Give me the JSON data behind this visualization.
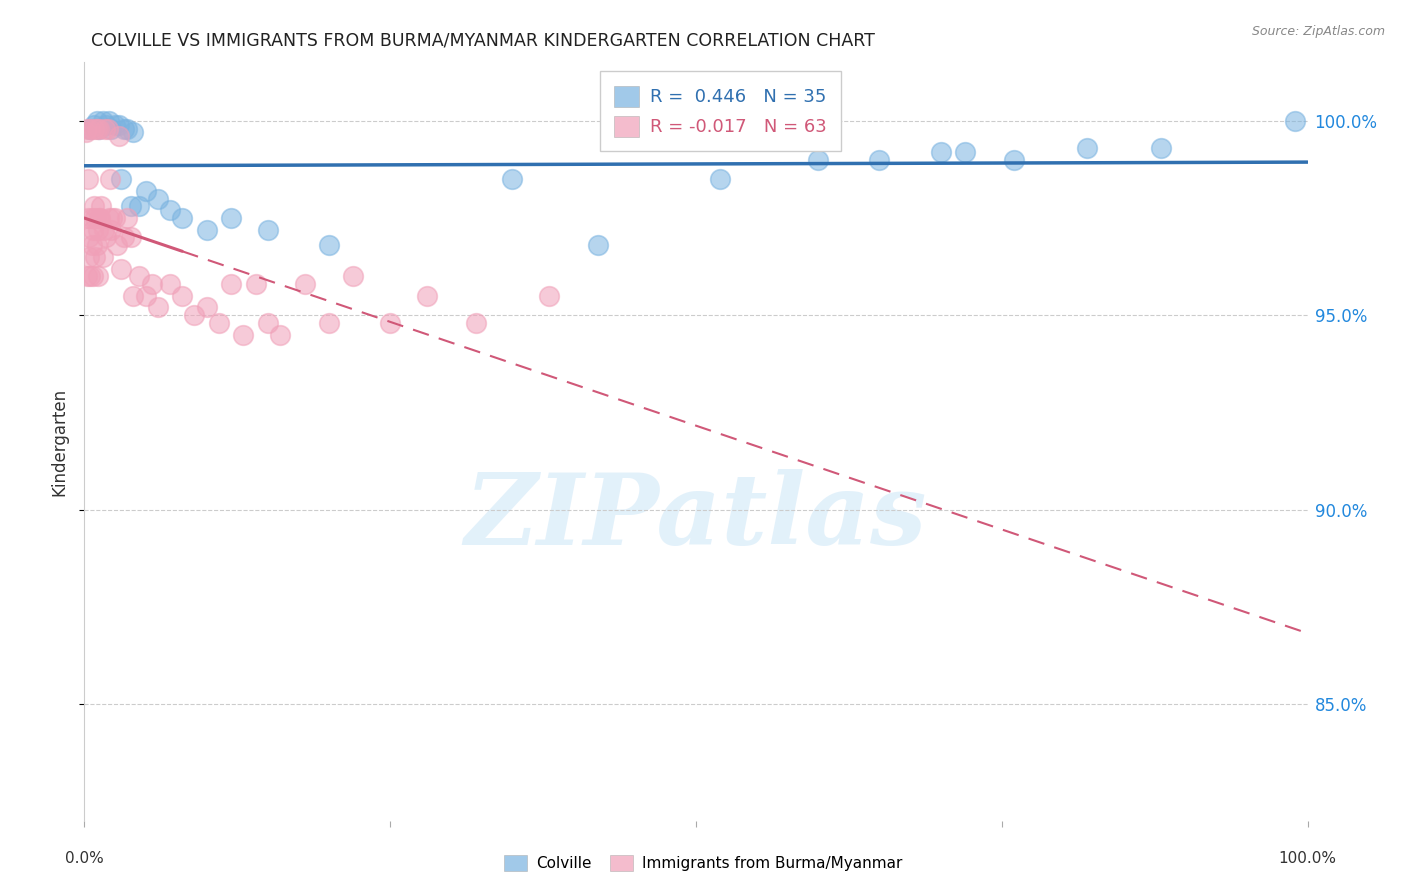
{
  "title": "COLVILLE VS IMMIGRANTS FROM BURMA/MYANMAR KINDERGARTEN CORRELATION CHART",
  "source": "Source: ZipAtlas.com",
  "ylabel": "Kindergarten",
  "xlim": [
    0.0,
    1.0
  ],
  "ylim": [
    0.82,
    1.015
  ],
  "yticks": [
    0.85,
    0.9,
    0.95,
    1.0
  ],
  "ytick_labels": [
    "85.0%",
    "90.0%",
    "95.0%",
    "100.0%"
  ],
  "legend1_R": "0.446",
  "legend1_N": "35",
  "legend2_R": "-0.017",
  "legend2_N": "63",
  "blue_color": "#7ab3e0",
  "pink_color": "#f0a0b8",
  "blue_line_color": "#3070b0",
  "pink_line_color": "#d05878",
  "blue_scatter_x": [
    0.005,
    0.008,
    0.01,
    0.012,
    0.015,
    0.018,
    0.02,
    0.022,
    0.025,
    0.028,
    0.03,
    0.032,
    0.035,
    0.038,
    0.04,
    0.045,
    0.05,
    0.06,
    0.07,
    0.08,
    0.1,
    0.12,
    0.15,
    0.2,
    0.35,
    0.42,
    0.52,
    0.6,
    0.65,
    0.7,
    0.72,
    0.76,
    0.82,
    0.88,
    0.99
  ],
  "blue_scatter_y": [
    0.998,
    0.999,
    1.0,
    0.998,
    1.0,
    0.999,
    1.0,
    0.998,
    0.999,
    0.999,
    0.985,
    0.998,
    0.998,
    0.978,
    0.997,
    0.978,
    0.982,
    0.98,
    0.977,
    0.975,
    0.972,
    0.975,
    0.972,
    0.968,
    0.985,
    0.968,
    0.985,
    0.99,
    0.99,
    0.992,
    0.992,
    0.99,
    0.993,
    0.993,
    1.0
  ],
  "pink_scatter_x": [
    0.001,
    0.002,
    0.002,
    0.003,
    0.003,
    0.004,
    0.004,
    0.005,
    0.005,
    0.006,
    0.006,
    0.007,
    0.007,
    0.008,
    0.008,
    0.009,
    0.009,
    0.01,
    0.01,
    0.011,
    0.011,
    0.012,
    0.012,
    0.013,
    0.014,
    0.015,
    0.016,
    0.017,
    0.018,
    0.019,
    0.02,
    0.021,
    0.022,
    0.023,
    0.025,
    0.027,
    0.028,
    0.03,
    0.032,
    0.035,
    0.038,
    0.04,
    0.045,
    0.05,
    0.055,
    0.06,
    0.07,
    0.08,
    0.09,
    0.1,
    0.11,
    0.12,
    0.13,
    0.14,
    0.15,
    0.16,
    0.18,
    0.2,
    0.22,
    0.25,
    0.28,
    0.32,
    0.38
  ],
  "pink_scatter_y": [
    0.997,
    0.998,
    0.96,
    0.975,
    0.985,
    0.965,
    0.97,
    0.998,
    0.96,
    0.968,
    0.975,
    0.972,
    0.96,
    0.978,
    0.998,
    0.965,
    0.975,
    0.968,
    0.998,
    0.972,
    0.96,
    0.975,
    0.998,
    0.975,
    0.978,
    0.965,
    0.972,
    0.998,
    0.97,
    0.998,
    0.975,
    0.985,
    0.972,
    0.975,
    0.975,
    0.968,
    0.996,
    0.962,
    0.97,
    0.975,
    0.97,
    0.955,
    0.96,
    0.955,
    0.958,
    0.952,
    0.958,
    0.955,
    0.95,
    0.952,
    0.948,
    0.958,
    0.945,
    0.958,
    0.948,
    0.945,
    0.958,
    0.948,
    0.96,
    0.948,
    0.955,
    0.948,
    0.955
  ],
  "watermark_text": "ZIPatlas",
  "background_color": "#ffffff",
  "grid_color": "#cccccc"
}
